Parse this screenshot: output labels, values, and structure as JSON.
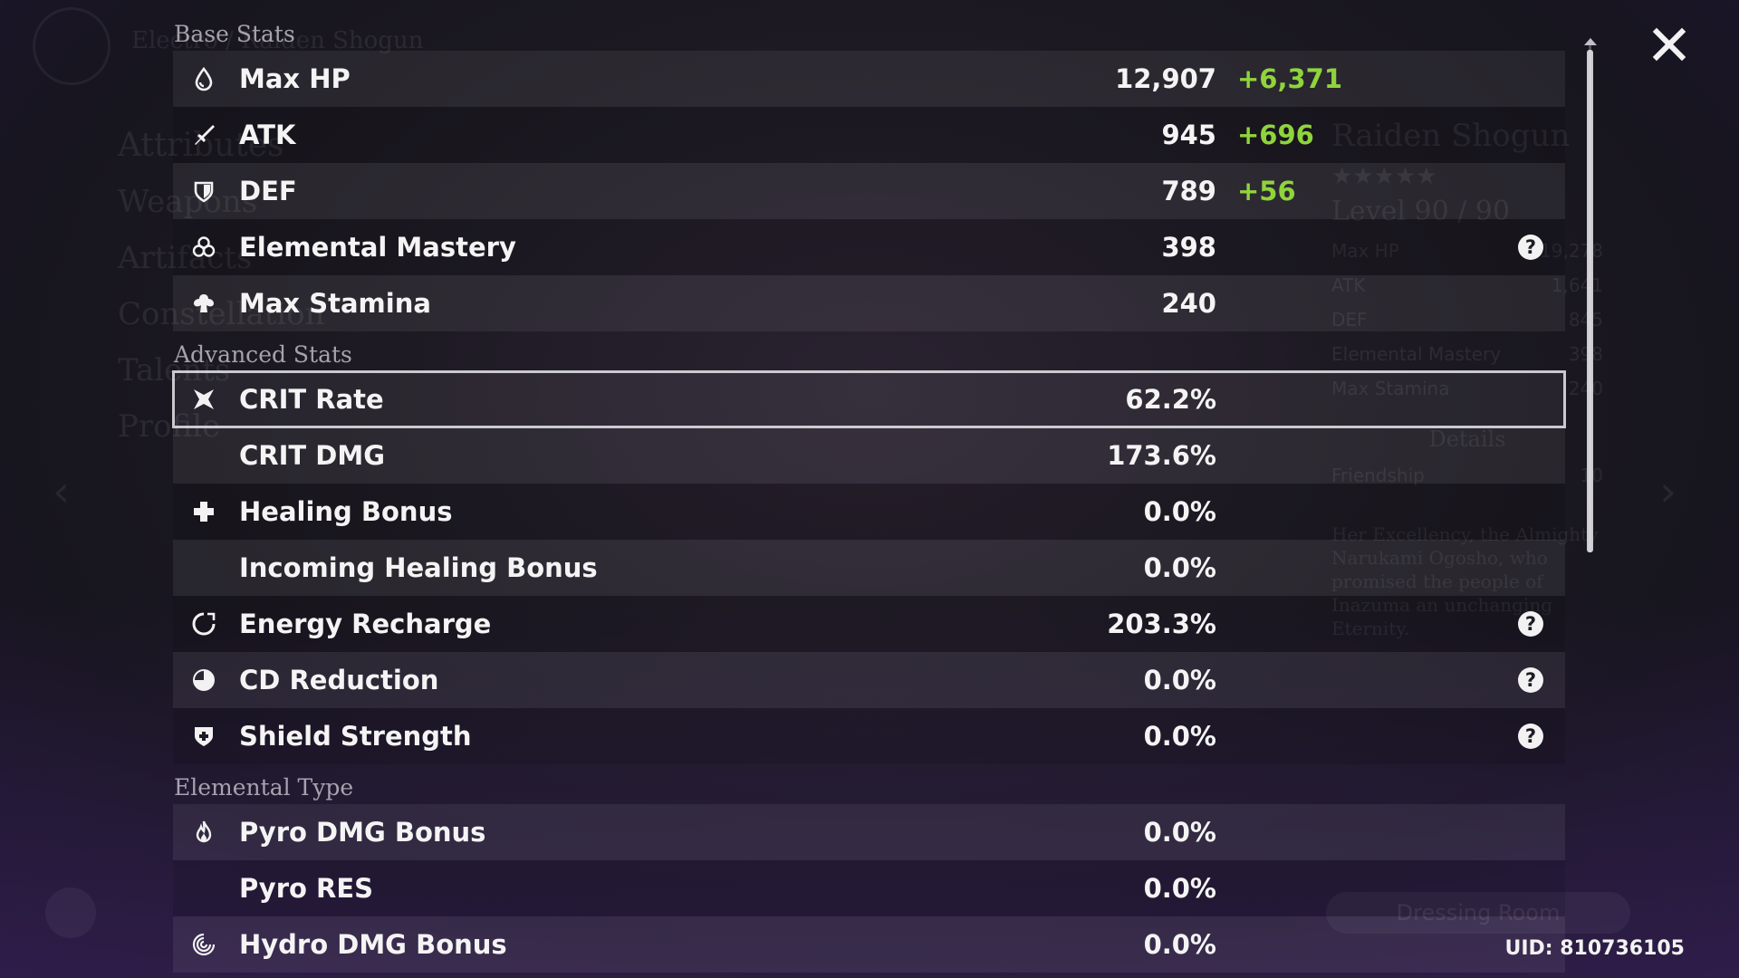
{
  "sections": {
    "base": "Base Stats",
    "advanced": "Advanced Stats",
    "elemental": "Elemental Type"
  },
  "base_stats": [
    {
      "name": "Max HP",
      "value": "12,907",
      "bonus": "+6,371",
      "icon": "hp-drop-icon"
    },
    {
      "name": "ATK",
      "value": "945",
      "bonus": "+696",
      "icon": "sword-icon"
    },
    {
      "name": "DEF",
      "value": "789",
      "bonus": "+56",
      "icon": "shield-icon"
    },
    {
      "name": "Elemental Mastery",
      "value": "398",
      "icon": "mastery-icon",
      "help": "?"
    },
    {
      "name": "Max Stamina",
      "value": "240",
      "icon": "stamina-icon"
    }
  ],
  "advanced_stats": [
    {
      "name": "CRIT Rate",
      "value": "62.2%",
      "icon": "crit-icon",
      "selected": true
    },
    {
      "name": "CRIT DMG",
      "value": "173.6%"
    },
    {
      "name": "Healing Bonus",
      "value": "0.0%",
      "icon": "cross-icon"
    },
    {
      "name": "Incoming Healing Bonus",
      "value": "0.0%"
    },
    {
      "name": "Energy Recharge",
      "value": "203.3%",
      "icon": "energy-icon",
      "help": "?"
    },
    {
      "name": "CD Reduction",
      "value": "0.0%",
      "icon": "cooldown-icon",
      "help": "?"
    },
    {
      "name": "Shield Strength",
      "value": "0.0%",
      "icon": "shield-plus-icon",
      "help": "?"
    }
  ],
  "elemental_stats": [
    {
      "name": "Pyro DMG Bonus",
      "value": "0.0%",
      "icon": "pyro-icon"
    },
    {
      "name": "Pyro RES",
      "value": "0.0%"
    },
    {
      "name": "Hydro DMG Bonus",
      "value": "0.0%",
      "icon": "hydro-icon"
    }
  ],
  "uid": "UID: 810736105",
  "background": {
    "header": "Electro / Raiden Shogun",
    "menu": [
      "Attributes",
      "Weapons",
      "Artifacts",
      "Constellation",
      "Talents",
      "Profile"
    ],
    "character_name": "Raiden Shogun",
    "stars": "★★★★★",
    "level": "Level 90 / 90",
    "mini_stats": [
      {
        "name": "Max HP",
        "value": "19,278"
      },
      {
        "name": "ATK",
        "value": "1,641"
      },
      {
        "name": "DEF",
        "value": "845"
      },
      {
        "name": "Elemental Mastery",
        "value": "398"
      },
      {
        "name": "Max Stamina",
        "value": "240"
      }
    ],
    "details": "Details",
    "friendship": "Friendship",
    "friendship_level": "10",
    "description": "Her Excellency, the Almighty Narukami Ogosho, who promised the people of Inazuma an unchanging Eternity.",
    "dressing_room": "Dressing Room"
  },
  "colors": {
    "bonus": "#8fd43c",
    "text": "#f4f4f4"
  }
}
